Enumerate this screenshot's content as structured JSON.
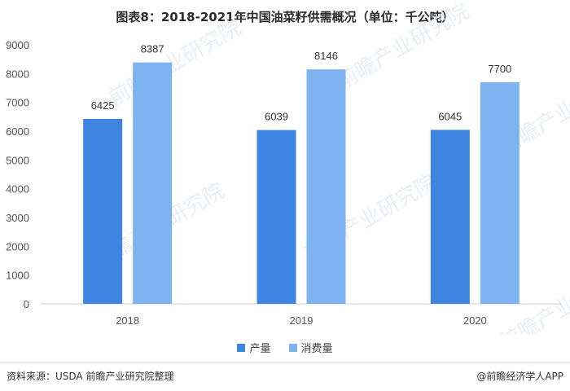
{
  "title": "图表8：2018-2021年中国油菜籽供需概况（单位：千公吨）",
  "source": "资料来源：USDA 前瞻产业研究院整理",
  "brand": "@前瞻经济学人APP",
  "watermark": "前瞻产业研究院",
  "colors": {
    "series1": "#3d85e0",
    "series2": "#7fb2f0",
    "grid": "#e3e3e3"
  },
  "chart_data": {
    "type": "bar",
    "categories": [
      "2018",
      "2019",
      "2020"
    ],
    "series": [
      {
        "name": "产量",
        "values": [
          6425,
          6039,
          6045
        ]
      },
      {
        "name": "消费量",
        "values": [
          8387,
          8146,
          7700
        ]
      }
    ],
    "yticks": [
      "0",
      "1000",
      "2000",
      "3000",
      "4000",
      "5000",
      "6000",
      "7000",
      "8000",
      "9000"
    ],
    "ylim": [
      0,
      9000
    ],
    "legend": "bottom",
    "grid": false
  }
}
